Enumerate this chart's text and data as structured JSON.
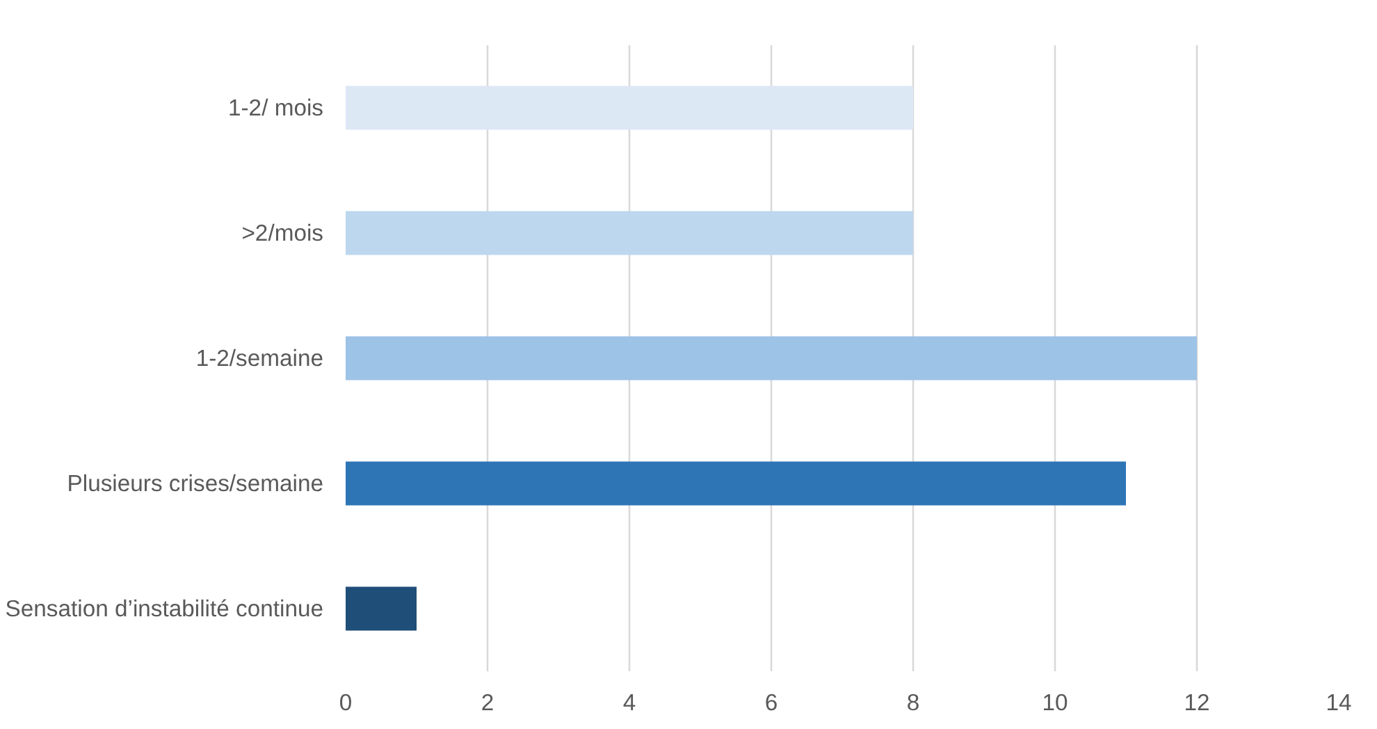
{
  "chart_data": {
    "type": "bar",
    "orientation": "horizontal",
    "categories": [
      "1-2/ mois",
      ">2/mois",
      "1-2/semaine",
      "Plusieurs crises/semaine",
      "Sensation d’instabilité continue"
    ],
    "values": [
      8,
      8,
      12,
      11,
      1
    ],
    "colors": [
      "#dde8f5",
      "#bdd7ee",
      "#9dc3e6",
      "#2e75b6",
      "#1f4e79"
    ],
    "xlim": [
      0,
      14
    ],
    "xticks": [
      0,
      2,
      4,
      6,
      8,
      10,
      12,
      14
    ],
    "grid": "x"
  }
}
